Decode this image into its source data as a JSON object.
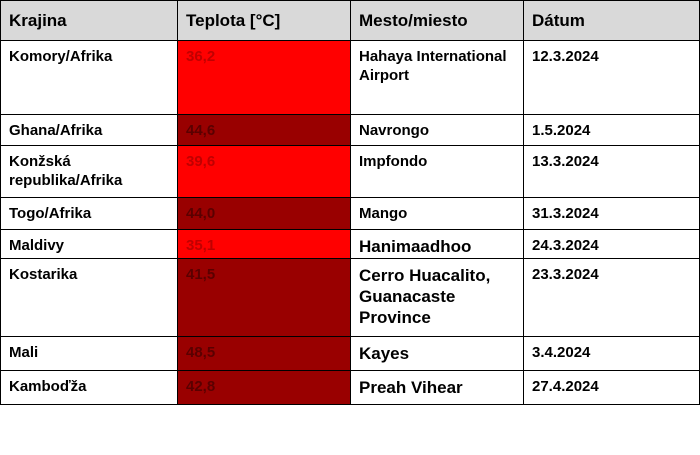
{
  "table": {
    "header": [
      "Krajina",
      "Teplota [°C]",
      "Mesto/miesto",
      "Dátum"
    ],
    "rows": [
      [
        "Komory/Afrika",
        "36,2",
        "Hahaya International Airport",
        "12.3.2024"
      ],
      [
        "Ghana/Afrika",
        "44,6",
        "Navrongo",
        "1.5.2024"
      ],
      [
        "Konžská republika/Afrika",
        "39,6",
        "Impfondo",
        "13.3.2024"
      ],
      [
        "Togo/Afrika",
        "44,0",
        "Mango",
        "31.3.2024"
      ],
      [
        "Maldivy",
        "35,1",
        "Hanimaadhoo",
        "24.3.2024"
      ],
      [
        "Kostarika",
        "41,5",
        "Cerro Huacalito, Guanacaste Province",
        "23.3.2024"
      ],
      [
        "Mali",
        "48,5",
        "Kayes",
        "3.4.2024"
      ],
      [
        "Kamboďža",
        "42,8",
        "Preah Vihear",
        "27.4.2024"
      ]
    ],
    "cell_colors": [
      "#ff0000",
      "#990000",
      "#ff0000",
      "#990000",
      "#ff0000",
      "#990000",
      "#990000",
      "#990000"
    ]
  }
}
